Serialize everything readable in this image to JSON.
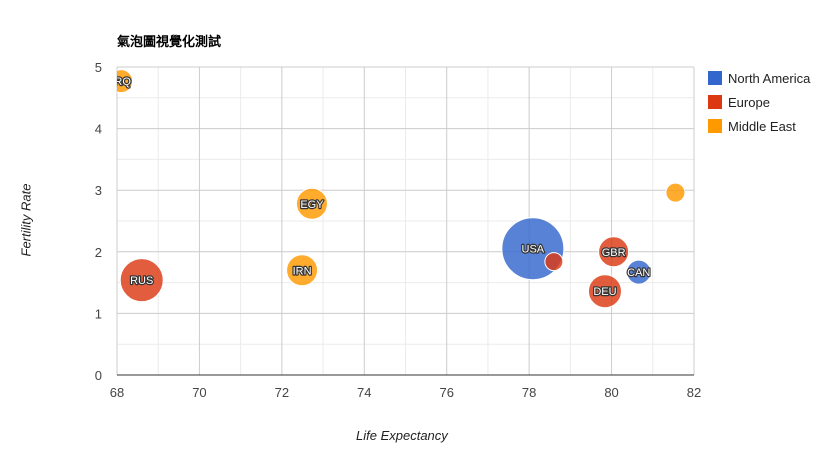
{
  "chart_data": {
    "type": "bubble",
    "title": "氣泡圖視覺化測試",
    "xlabel": "Life Expectancy",
    "ylabel": "Fertility Rate",
    "xlim": [
      68,
      82
    ],
    "ylim": [
      0,
      5
    ],
    "xticks": [
      68,
      70,
      72,
      74,
      76,
      78,
      80,
      82
    ],
    "yticks": [
      0,
      1,
      2,
      3,
      4,
      5
    ],
    "grid": true,
    "legend_position": "right",
    "series": [
      {
        "name": "North America",
        "color": "#3366cc"
      },
      {
        "name": "Europe",
        "color": "#dc3912"
      },
      {
        "name": "Middle East",
        "color": "#ff9900"
      }
    ],
    "points": [
      {
        "label": "IRQ",
        "display": "IRQ",
        "x": 68.1,
        "y": 4.77,
        "region": "Middle East",
        "size": 0.22
      },
      {
        "label": "RUS",
        "x": 68.6,
        "y": 1.54,
        "region": "Europe",
        "size": 0.62
      },
      {
        "label": "EGY",
        "x": 72.73,
        "y": 2.78,
        "region": "Middle East",
        "size": 0.38
      },
      {
        "label": "IRN",
        "x": 72.49,
        "y": 1.7,
        "region": "Middle East",
        "size": 0.38
      },
      {
        "label": "USA",
        "x": 78.09,
        "y": 2.05,
        "region": "North America",
        "size": 1.0
      },
      {
        "label": "",
        "x": 78.6,
        "y": 1.84,
        "region": "Europe",
        "size": 0.12
      },
      {
        "label": "GBR",
        "x": 80.05,
        "y": 2.0,
        "region": "Europe",
        "size": 0.36
      },
      {
        "label": "DEU",
        "x": 79.84,
        "y": 1.36,
        "region": "Europe",
        "size": 0.42
      },
      {
        "label": "CAN",
        "x": 80.66,
        "y": 1.67,
        "region": "North America",
        "size": 0.24
      },
      {
        "label": "",
        "x": 81.55,
        "y": 2.96,
        "region": "Middle East",
        "size": 0.14
      }
    ]
  }
}
